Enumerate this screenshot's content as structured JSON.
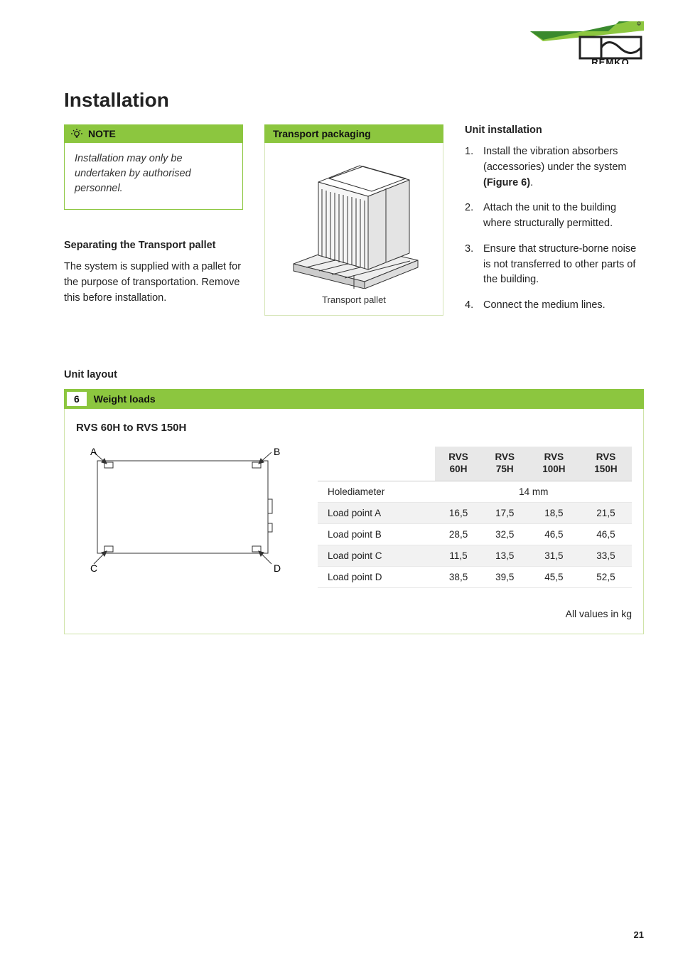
{
  "brand": "REMKO",
  "page_title": "Installation",
  "note": {
    "label": "NOTE",
    "body": "Installation may only be undertaken by authorised personnel."
  },
  "pallet": {
    "title": "Separating the Transport pallet",
    "text": "The system is supplied with a pallet for the purpose of transportation. Remove this before installation."
  },
  "diagram": {
    "header": "Transport packaging",
    "caption": "Transport pallet"
  },
  "install": {
    "title": "Unit installation",
    "steps": [
      "Install the vibration absorbers (accessories) under the system (Figure 6).",
      "Attach the unit to the building where structurally permitted.",
      "Ensure that structure-borne noise is not transferred to other parts of the building.",
      "Connect the medium lines."
    ],
    "step_bold_phrase": "(Figure 6)"
  },
  "layout": {
    "heading": "Unit layout",
    "fig_num": "6",
    "fig_title": "Weight loads",
    "model_range": "RVS 60H to RVS 150H",
    "corner_labels": [
      "A",
      "B",
      "C",
      "D"
    ],
    "table": {
      "columns": [
        "",
        "RVS 60H",
        "RVS 75H",
        "RVS 100H",
        "RVS 150H"
      ],
      "rows": [
        {
          "label": "Holediameter",
          "span_value": "14 mm"
        },
        {
          "label": "Load point A",
          "values": [
            "16,5",
            "17,5",
            "18,5",
            "21,5"
          ]
        },
        {
          "label": "Load point B",
          "values": [
            "28,5",
            "32,5",
            "46,5",
            "46,5"
          ]
        },
        {
          "label": "Load point C",
          "values": [
            "11,5",
            "13,5",
            "31,5",
            "33,5"
          ]
        },
        {
          "label": "Load point D",
          "values": [
            "38,5",
            "39,5",
            "45,5",
            "52,5"
          ]
        }
      ],
      "footer": "All values in kg"
    }
  },
  "page_number": "21",
  "colors": {
    "accent": "#8cc63f",
    "logo_green_dark": "#3a8a2d",
    "logo_green_light": "#8cc63f"
  }
}
